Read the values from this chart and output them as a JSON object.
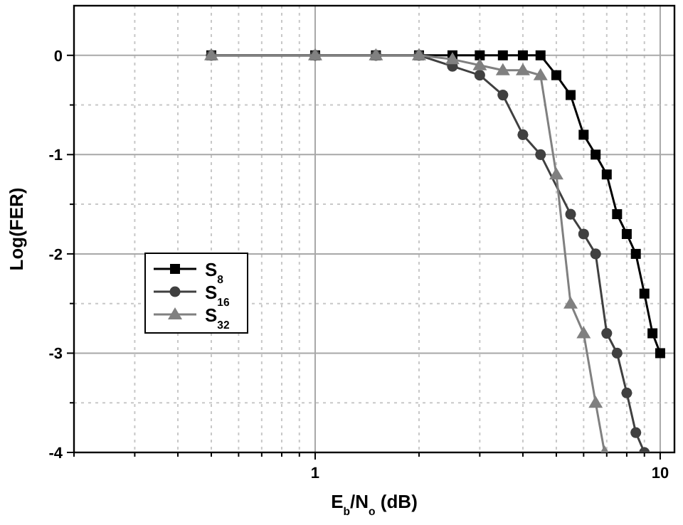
{
  "chart_data": {
    "type": "line",
    "xlabel": "E$_{b}$/N$_{o}$ (dB)",
    "ylabel": "Log(FER)",
    "log": "x",
    "grid": true,
    "legend": "left",
    "line_style": "solid",
    "xlim": [
      0.2,
      11
    ],
    "ylim": [
      -4,
      0.5
    ],
    "xticks": [
      {
        "value": 0.2,
        "label": null
      },
      {
        "value": 0.3,
        "label": null
      },
      {
        "value": 0.4,
        "label": null
      },
      {
        "value": 0.5,
        "label": null
      },
      {
        "value": 0.6,
        "label": null
      },
      {
        "value": 0.7,
        "label": null
      },
      {
        "value": 0.8,
        "label": null
      },
      {
        "value": 0.9,
        "label": null
      },
      1,
      {
        "value": 2,
        "label": null
      },
      {
        "value": 3,
        "label": null
      },
      {
        "value": 4,
        "label": null
      },
      {
        "value": 5,
        "label": null
      },
      {
        "value": 6,
        "label": null
      },
      {
        "value": 7,
        "label": null
      },
      {
        "value": 8,
        "label": null
      },
      {
        "value": 9,
        "label": null
      },
      10
    ],
    "yticks": [
      0,
      {
        "value": -0.5,
        "label": null
      },
      -1,
      {
        "value": -1.5,
        "label": null
      },
      -2,
      {
        "value": -2.5,
        "label": null
      },
      -3,
      {
        "value": -3.5,
        "label": null
      },
      -4
    ],
    "series": [
      {
        "name": "S$_{8}$",
        "color": "#000000",
        "marker": "square",
        "x": [
          0.5,
          1,
          1.5,
          2,
          2.5,
          3,
          3.5,
          4,
          4.5,
          5,
          5.5,
          6,
          6.5,
          7,
          7.5,
          8,
          8.5,
          9,
          9.5,
          10
        ],
        "values": [
          0,
          0,
          0,
          0,
          0,
          0,
          0,
          0,
          0,
          -0.2,
          -0.4,
          -0.8,
          -1.0,
          -1.2,
          -1.6,
          -1.8,
          -2.0,
          -2.4,
          -2.8,
          -3.0
        ]
      },
      {
        "name": "S$_{16}$",
        "color": "#404040",
        "marker": "circle",
        "x": [
          0.5,
          1,
          1.5,
          2,
          2.5,
          3,
          3.5,
          4,
          4.5,
          5.5,
          6,
          6.5,
          7,
          7.5,
          8,
          8.5,
          9
        ],
        "values": [
          0,
          0,
          0,
          0,
          -0.11,
          -0.2,
          -0.4,
          -0.8,
          -1.0,
          -1.6,
          -1.8,
          -2.0,
          -2.8,
          -3.0,
          -3.4,
          -3.8,
          -4.0
        ]
      },
      {
        "name": "S$_{32}$",
        "color": "#808080",
        "marker": "triangle",
        "x": [
          0.5,
          1,
          1.5,
          2,
          2.5,
          3,
          3.5,
          4,
          4.5,
          5,
          5.5,
          6,
          6.5,
          6.9
        ],
        "values": [
          0,
          0,
          0,
          0,
          -0.04,
          -0.1,
          -0.15,
          -0.15,
          -0.2,
          -1.2,
          -2.5,
          -2.8,
          -3.5,
          -4.0
        ]
      }
    ]
  }
}
